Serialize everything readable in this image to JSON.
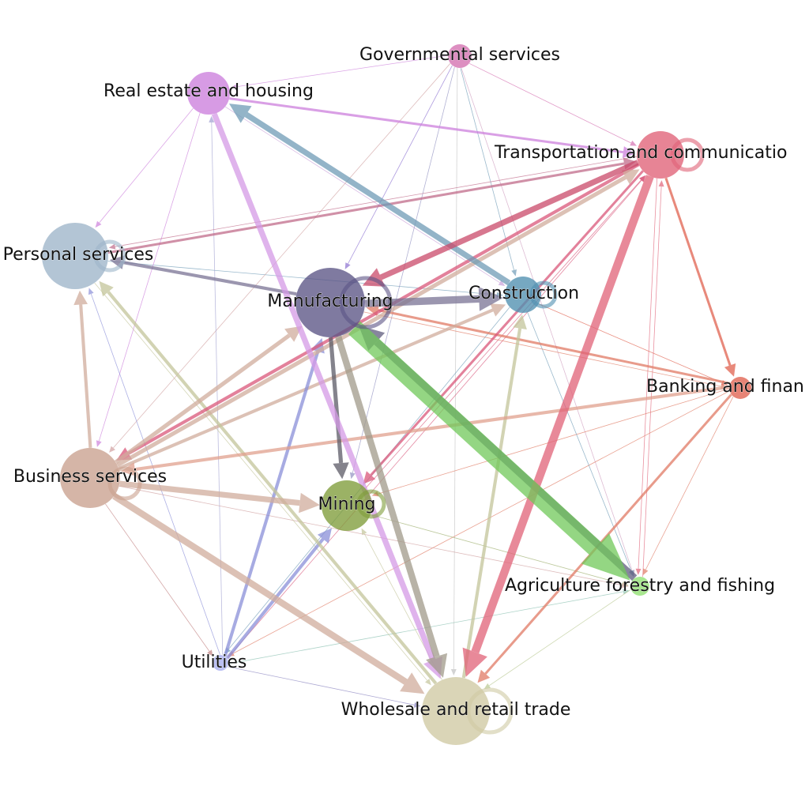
{
  "diagram": {
    "type": "directed-network",
    "nodes": [
      {
        "id": "gov",
        "label": "Governmental services",
        "color": "#d46fb0",
        "weight": 1
      },
      {
        "id": "real",
        "label": "Real estate and housing",
        "color": "#cc7fdc",
        "weight": 2
      },
      {
        "id": "trans",
        "label": "Transportation and communicatio",
        "color": "#e06277",
        "weight": 3,
        "self_loop": true
      },
      {
        "id": "pers",
        "label": "Personal services",
        "color": "#9db5c9",
        "weight": 4,
        "self_loop": true
      },
      {
        "id": "manu",
        "label": "Manufacturing",
        "color": "#5b5485",
        "weight": 5,
        "self_loop": true
      },
      {
        "id": "cons",
        "label": "Construction",
        "color": "#4f8fb0",
        "weight": 2,
        "self_loop": true
      },
      {
        "id": "bank",
        "label": "Banking and finan",
        "color": "#e0614f",
        "weight": 1,
        "self_loop": true
      },
      {
        "id": "bus",
        "label": "Business services",
        "color": "#c9a08e",
        "weight": 4,
        "self_loop": true
      },
      {
        "id": "min",
        "label": "Mining",
        "color": "#7f9c3a",
        "weight": 3,
        "self_loop": true
      },
      {
        "id": "agri",
        "label": "Agriculture forestry and fishing",
        "color": "#8fe06f",
        "weight": 1
      },
      {
        "id": "util",
        "label": "Utilities",
        "color": "#a8aef0",
        "weight": 1
      },
      {
        "id": "whole",
        "label": "Wholesale and retail trade",
        "color": "#cfc9a3",
        "weight": 5,
        "self_loop": true
      }
    ],
    "edges": [
      {
        "from": "manu",
        "to": "agri",
        "weight": 20,
        "color": "#70c85a"
      },
      {
        "from": "agri",
        "to": "manu",
        "weight": 8,
        "color": "#5f5c7d"
      },
      {
        "from": "trans",
        "to": "whole",
        "weight": 9,
        "color": "#e06277"
      },
      {
        "from": "manu",
        "to": "whole",
        "weight": 7,
        "color": "#a09a8a"
      },
      {
        "from": "real",
        "to": "whole",
        "weight": 6,
        "color": "#d49ae6"
      },
      {
        "from": "manu",
        "to": "cons",
        "weight": 8,
        "color": "#7a7394"
      },
      {
        "from": "cons",
        "to": "real",
        "weight": 6,
        "color": "#6f9bb6"
      },
      {
        "from": "trans",
        "to": "manu",
        "weight": 6,
        "color": "#c94a6a"
      },
      {
        "from": "bus",
        "to": "whole",
        "weight": 7,
        "color": "#d0ac9c"
      },
      {
        "from": "bus",
        "to": "min",
        "weight": 6,
        "color": "#d0ac9c"
      },
      {
        "from": "bus",
        "to": "manu",
        "weight": 4,
        "color": "#d0ac9c"
      },
      {
        "from": "bus",
        "to": "trans",
        "weight": 4,
        "color": "#d0ac9c"
      },
      {
        "from": "bus",
        "to": "cons",
        "weight": 3,
        "color": "#d0ac9c"
      },
      {
        "from": "bus",
        "to": "pers",
        "weight": 3,
        "color": "#d0ac9c"
      },
      {
        "from": "manu",
        "to": "min",
        "weight": 4,
        "color": "#5b5a66"
      },
      {
        "from": "util",
        "to": "manu",
        "weight": 3,
        "color": "#8a8fd8"
      },
      {
        "from": "util",
        "to": "min",
        "weight": 3,
        "color": "#8a8fd8"
      },
      {
        "from": "whole",
        "to": "cons",
        "weight": 3,
        "color": "#c3c49a"
      },
      {
        "from": "whole",
        "to": "pers",
        "weight": 3,
        "color": "#c3c49a"
      },
      {
        "from": "bank",
        "to": "whole",
        "weight": 2,
        "color": "#e07a64"
      },
      {
        "from": "bank",
        "to": "bus",
        "weight": 3,
        "color": "#e0a08e"
      },
      {
        "from": "bank",
        "to": "manu",
        "weight": 2,
        "color": "#e07a64"
      },
      {
        "from": "trans",
        "to": "bank",
        "weight": 2,
        "color": "#e0614f"
      },
      {
        "from": "trans",
        "to": "bus",
        "weight": 3,
        "color": "#d9577a"
      },
      {
        "from": "trans",
        "to": "min",
        "weight": 2,
        "color": "#d9577a"
      },
      {
        "from": "pers",
        "to": "cons",
        "weight": 1,
        "color": "#6f9bb6"
      },
      {
        "from": "pers",
        "to": "trans",
        "weight": 2,
        "color": "#c06b8a"
      },
      {
        "from": "manu",
        "to": "pers",
        "weight": 3,
        "color": "#7a7394"
      },
      {
        "from": "real",
        "to": "pers",
        "weight": 1,
        "color": "#cc7fdc"
      },
      {
        "from": "real",
        "to": "bus",
        "weight": 1,
        "color": "#cc7fdc"
      },
      {
        "from": "real",
        "to": "trans",
        "weight": 2,
        "color": "#cc7fdc"
      },
      {
        "from": "real",
        "to": "cons",
        "weight": 1,
        "color": "#c9a0d9"
      },
      {
        "from": "gov",
        "to": "manu",
        "weight": 1,
        "color": "#8a6fd0"
      },
      {
        "from": "gov",
        "to": "bus",
        "weight": 1,
        "color": "#d0a0a0"
      },
      {
        "from": "gov",
        "to": "min",
        "weight": 1,
        "color": "#9090c0"
      },
      {
        "from": "gov",
        "to": "trans",
        "weight": 1,
        "color": "#d46fb0"
      },
      {
        "from": "gov",
        "to": "whole",
        "weight": 1,
        "color": "#c0c0c0"
      },
      {
        "from": "gov",
        "to": "cons",
        "weight": 1,
        "color": "#6f9bb6"
      },
      {
        "from": "gov",
        "to": "agri",
        "weight": 1,
        "color": "#d0a0c0"
      },
      {
        "from": "gov",
        "to": "real",
        "weight": 1,
        "color": "#cc7fdc"
      },
      {
        "from": "util",
        "to": "whole",
        "weight": 1,
        "color": "#8a85c0"
      },
      {
        "from": "util",
        "to": "trans",
        "weight": 1,
        "color": "#d9577a"
      },
      {
        "from": "util",
        "to": "real",
        "weight": 1,
        "color": "#a0a0d0"
      },
      {
        "from": "util",
        "to": "pers",
        "weight": 1,
        "color": "#8a8fd8"
      },
      {
        "from": "util",
        "to": "agri",
        "weight": 1,
        "color": "#8ac0b0"
      },
      {
        "from": "agri",
        "to": "whole",
        "weight": 1,
        "color": "#b8c890"
      },
      {
        "from": "agri",
        "to": "trans",
        "weight": 1,
        "color": "#e06277"
      },
      {
        "from": "bank",
        "to": "agri",
        "weight": 1,
        "color": "#e07a64"
      },
      {
        "from": "bank",
        "to": "min",
        "weight": 1,
        "color": "#e07a64"
      },
      {
        "from": "bank",
        "to": "util",
        "weight": 1,
        "color": "#e07a64"
      },
      {
        "from": "trans",
        "to": "agri",
        "weight": 1,
        "color": "#e06277"
      },
      {
        "from": "trans",
        "to": "pers",
        "weight": 1,
        "color": "#c06b8a"
      },
      {
        "from": "cons",
        "to": "bank",
        "weight": 1,
        "color": "#e0614f"
      },
      {
        "from": "cons",
        "to": "agri",
        "weight": 1,
        "color": "#6f9bb6"
      },
      {
        "from": "cons",
        "to": "util",
        "weight": 1,
        "color": "#6f9bb6"
      },
      {
        "from": "min",
        "to": "agri",
        "weight": 1,
        "color": "#a0b070"
      },
      {
        "from": "min",
        "to": "trans",
        "weight": 1,
        "color": "#d9577a"
      },
      {
        "from": "bus",
        "to": "agri",
        "weight": 1,
        "color": "#d0a0a0"
      },
      {
        "from": "bus",
        "to": "util",
        "weight": 1,
        "color": "#c08080"
      },
      {
        "from": "manu",
        "to": "bank",
        "weight": 1,
        "color": "#e07a64"
      },
      {
        "from": "pers",
        "to": "whole",
        "weight": 1,
        "color": "#c3c49a"
      },
      {
        "from": "whole",
        "to": "min",
        "weight": 1,
        "color": "#c3c49a"
      }
    ]
  }
}
